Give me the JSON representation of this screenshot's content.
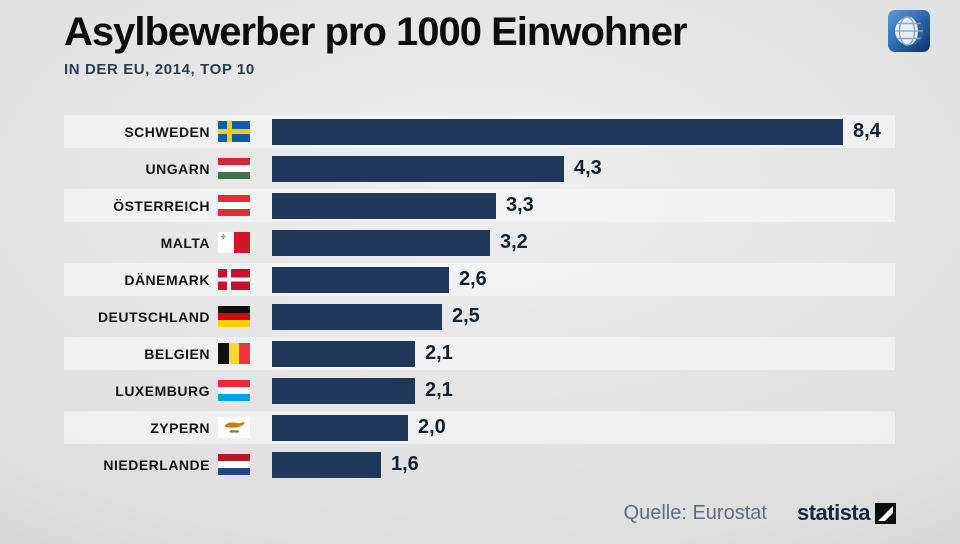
{
  "header": {
    "title": "Asylbewerber pro 1000 Einwohner",
    "subtitle": "IN DER EU, 2014, TOP 10"
  },
  "footer": {
    "source_label": "Quelle: Eurostat",
    "brand": "statista"
  },
  "icons": {
    "broadcaster": "tagesschau-globe-icon",
    "brand_mark": "statista-mark-icon"
  },
  "colors": {
    "bar": "#20395a",
    "stripe": "#efefef",
    "value_text": "#14202e",
    "source_text": "#5f6e7e"
  },
  "chart_data": {
    "type": "bar",
    "orientation": "horizontal",
    "title": "Asylbewerber pro 1000 Einwohner",
    "subtitle": "IN DER EU, 2014, TOP 10",
    "categories": [
      "SCHWEDEN",
      "UNGARN",
      "ÖSTERREICH",
      "MALTA",
      "DÄNEMARK",
      "DEUTSCHLAND",
      "BELGIEN",
      "LUXEMBURG",
      "ZYPERN",
      "NIEDERLANDE"
    ],
    "values": [
      8.4,
      4.3,
      3.3,
      3.2,
      2.6,
      2.5,
      2.1,
      2.1,
      2.0,
      1.6
    ],
    "value_labels": [
      "8,4",
      "4,3",
      "3,3",
      "3,2",
      "2,6",
      "2,5",
      "2,1",
      "2,1",
      "2,0",
      "1,6"
    ],
    "flags": [
      "sweden",
      "hungary",
      "austria",
      "malta",
      "denmark",
      "germany",
      "belgium",
      "luxembourg",
      "cyprus",
      "netherlands"
    ],
    "xlim": [
      0,
      8.4
    ],
    "grid": false,
    "legend": false,
    "bar_color": "#20395a",
    "source": "Eurostat"
  }
}
